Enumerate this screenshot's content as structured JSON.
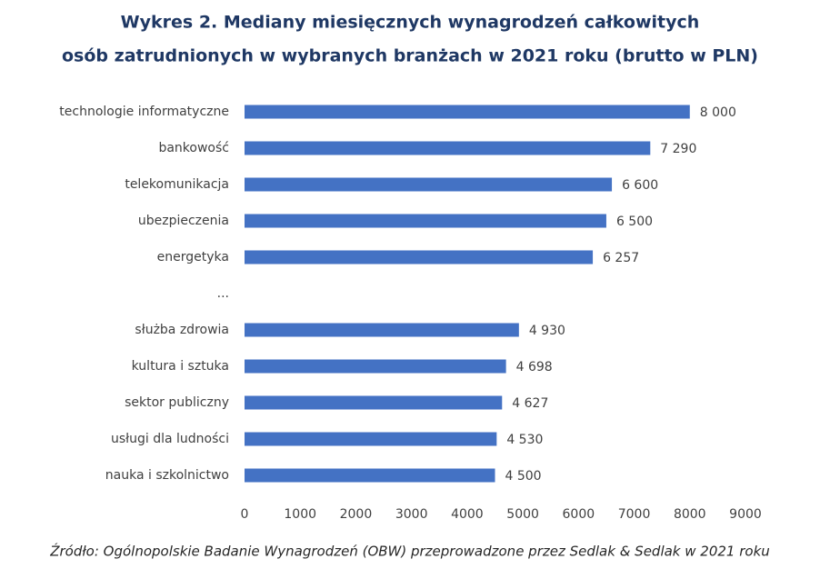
{
  "chart_data": {
    "type": "hbar",
    "title": [
      "Wykres 2. Mediany miesięcznych wynagrodzeń całkowitych",
      "osób zatrudnionych w wybranych branżach w 2021 roku (brutto w PLN)"
    ],
    "categories": [
      "technologie informatyczne",
      "bankowość",
      "telekomunikacja",
      "ubezpieczenia",
      "energetyka",
      "...",
      "służba zdrowia",
      "kultura i sztuka",
      "sektor publiczny",
      "usługi dla ludności",
      "nauka i szkolnictwo"
    ],
    "values": [
      8000,
      7290,
      6600,
      6500,
      6257,
      null,
      4930,
      4698,
      4627,
      4530,
      4500
    ],
    "value_labels": [
      "8 000",
      "7 290",
      "6 600",
      "6 500",
      "6 257",
      null,
      "4 930",
      "4 698",
      "4 627",
      "4 530",
      "4 500"
    ],
    "color": "#4472c4",
    "xlim": [
      0,
      9000
    ],
    "xticks": [
      0,
      1000,
      2000,
      3000,
      4000,
      5000,
      6000,
      7000,
      8000,
      9000
    ],
    "source": "Źródło: Ogólnopolskie Badanie Wynagrodzeń (OBW) przeprowadzone przez Sedlak & Sedlak w 2021 roku"
  }
}
